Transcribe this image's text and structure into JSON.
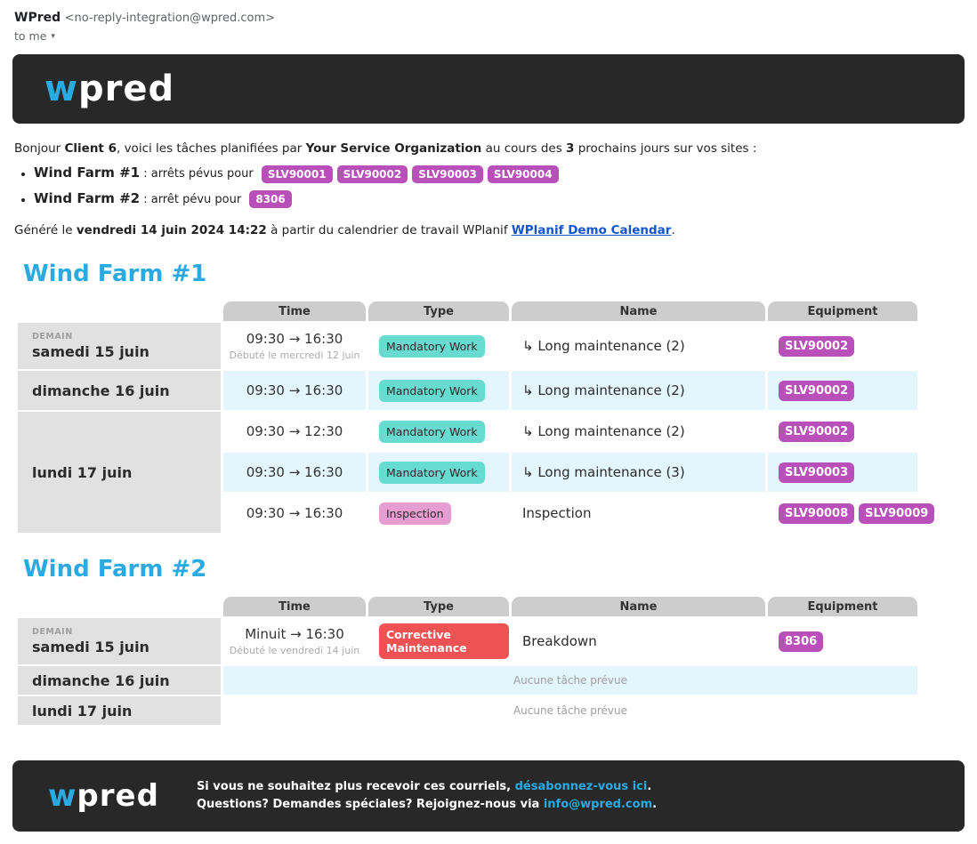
{
  "email_header": {
    "sender_name": "WPred",
    "sender_address": "<no-reply-integration@wpred.com>",
    "recipient_label": "to me",
    "caret": "▾"
  },
  "brand": {
    "logo_w": "w",
    "logo_rest": "pred"
  },
  "colors": {
    "accent_blue": "#29ABE2",
    "dark_bar": "#282828",
    "badge_purple": "#B94FB9",
    "badge_teal": "#68DBD0",
    "badge_pink": "#E79CD2",
    "badge_red": "#EE5253",
    "row_alt_blue": "#E4F6FD",
    "date_cell_gray": "#E1E1E1",
    "column_header_gray": "#CDCDCD"
  },
  "intro": {
    "greeting": "Bonjour ",
    "client": "Client 6",
    "mid1": ", voici les tâches planifiées par ",
    "org": "Your Service Organization",
    "mid2": " au cours des ",
    "days_count": "3",
    "suffix": " prochains jours sur vos sites :"
  },
  "bullets": [
    {
      "site": "Wind Farm #1",
      "text": " : arrêts pévus pour",
      "badges": [
        "SLV90001",
        "SLV90002",
        "SLV90003",
        "SLV90004"
      ]
    },
    {
      "site": "Wind Farm #2",
      "text": " : arrêt pévu pour",
      "badges": [
        "8306"
      ]
    }
  ],
  "generated": {
    "prefix": "Généré le ",
    "datetime": "vendredi 14 juin 2024 14:22",
    "mid": " à partir du calendrier de travail WPlanif ",
    "link": "WPlanif Demo Calendar",
    "suffix": "."
  },
  "farm1": {
    "title": "Wind Farm #1",
    "columns": {
      "time": "Time",
      "type": "Type",
      "name": "Name",
      "equipment": "Equipment"
    },
    "days": [
      {
        "badge": "DEMAIN",
        "label": "samedi 15 juin"
      },
      {
        "label": "dimanche 16 juin"
      },
      {
        "label": "lundi 17 juin"
      }
    ],
    "rows": [
      {
        "time": "09:30 → 16:30",
        "time_note": "Débuté le mercredi 12 juin",
        "type": "Mandatory Work",
        "name": "↳ Long maintenance (2)",
        "equipment": [
          "SLV90002"
        ]
      },
      {
        "time": "09:30 → 16:30",
        "type": "Mandatory Work",
        "name": "↳ Long maintenance (2)",
        "equipment": [
          "SLV90002"
        ]
      },
      {
        "time": "09:30 → 12:30",
        "type": "Mandatory Work",
        "name": "↳ Long maintenance (2)",
        "equipment": [
          "SLV90002"
        ]
      },
      {
        "time": "09:30 → 16:30",
        "type": "Mandatory Work",
        "name": "↳ Long maintenance (3)",
        "equipment": [
          "SLV90003"
        ]
      },
      {
        "time": "09:30 → 16:30",
        "type": "Inspection",
        "name": "Inspection",
        "equipment": [
          "SLV90008",
          "SLV90009"
        ]
      }
    ]
  },
  "farm2": {
    "title": "Wind Farm #2",
    "columns": {
      "time": "Time",
      "type": "Type",
      "name": "Name",
      "equipment": "Equipment"
    },
    "days": [
      {
        "badge": "DEMAIN",
        "label": "samedi 15 juin"
      },
      {
        "label": "dimanche 16 juin"
      },
      {
        "label": "lundi 17 juin"
      }
    ],
    "rows": [
      {
        "time": "Minuit → 16:30",
        "time_note": "Débuté le vendredi 14 juin",
        "type": "Corrective Maintenance",
        "name": "Breakdown",
        "equipment": [
          "8306"
        ]
      },
      {
        "empty": "Aucune tâche prévue"
      },
      {
        "empty": "Aucune tâche prévue"
      }
    ]
  },
  "footer": {
    "line1_prefix": "Si vous ne souhaitez plus recevoir ces courriels, ",
    "line1_link": "désabonnez-vous ici",
    "line1_suffix": ".",
    "line2_prefix": "Questions? Demandes spéciales? Rejoignez-nous via ",
    "line2_link": "info@wpred.com",
    "line2_suffix": "."
  }
}
